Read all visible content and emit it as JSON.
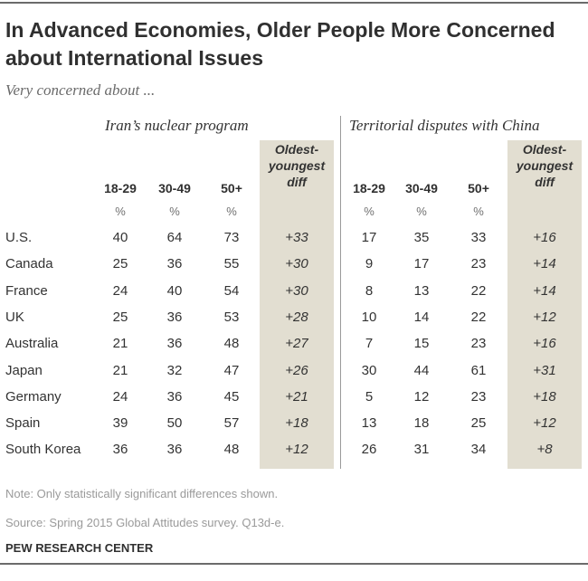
{
  "title": "In Advanced Economies, Older People More Concerned about International Issues",
  "subtitle": "Very concerned about ...",
  "groups": [
    {
      "label": "Iran’s nuclear program",
      "columns": [
        "18-29",
        "30-49",
        "50+"
      ],
      "percent_sign": "%",
      "diff_label": "Oldest-youngest diff"
    },
    {
      "label": "Territorial disputes with China",
      "columns": [
        "18-29",
        "30-49",
        "50+"
      ],
      "percent_sign": "%",
      "diff_label": "Oldest-youngest diff"
    }
  ],
  "rows": [
    {
      "country": "U.S.",
      "iran": [
        "40",
        "64",
        "73",
        "+33"
      ],
      "china": [
        "17",
        "35",
        "33",
        "+16"
      ]
    },
    {
      "country": "Canada",
      "iran": [
        "25",
        "36",
        "55",
        "+30"
      ],
      "china": [
        "9",
        "17",
        "23",
        "+14"
      ]
    },
    {
      "country": "France",
      "iran": [
        "24",
        "40",
        "54",
        "+30"
      ],
      "china": [
        "8",
        "13",
        "22",
        "+14"
      ]
    },
    {
      "country": "UK",
      "iran": [
        "25",
        "36",
        "53",
        "+28"
      ],
      "china": [
        "10",
        "14",
        "22",
        "+12"
      ]
    },
    {
      "country": "Australia",
      "iran": [
        "21",
        "36",
        "48",
        "+27"
      ],
      "china": [
        "7",
        "15",
        "23",
        "+16"
      ]
    },
    {
      "country": "Japan",
      "iran": [
        "21",
        "32",
        "47",
        "+26"
      ],
      "china": [
        "30",
        "44",
        "61",
        "+31"
      ]
    },
    {
      "country": "Germany",
      "iran": [
        "24",
        "36",
        "45",
        "+21"
      ],
      "china": [
        "5",
        "12",
        "23",
        "+18"
      ]
    },
    {
      "country": "Spain",
      "iran": [
        "39",
        "50",
        "57",
        "+18"
      ],
      "china": [
        "13",
        "18",
        "25",
        "+12"
      ]
    },
    {
      "country": "South Korea",
      "iran": [
        "36",
        "36",
        "48",
        "+12"
      ],
      "china": [
        "26",
        "31",
        "34",
        "+8"
      ]
    }
  ],
  "note": "Note: Only statistically significant differences shown.",
  "source": "Source: Spring 2015 Global Attitudes survey. Q13d-e.",
  "credit": "PEW RESEARCH CENTER",
  "colors": {
    "diff_column_bg": "#e2ded1",
    "rule": "#6b6b6b",
    "note_text": "#9a9a9a"
  },
  "chart_data": {
    "type": "table",
    "title": "In Advanced Economies, Older People More Concerned about International Issues",
    "subtitle": "Very concerned about ...",
    "column_groups": [
      "Iran’s nuclear program",
      "Territorial disputes with China"
    ],
    "columns": [
      "18-29",
      "30-49",
      "50+",
      "Oldest-youngest diff"
    ],
    "unit": "%",
    "categories": [
      "U.S.",
      "Canada",
      "France",
      "UK",
      "Australia",
      "Japan",
      "Germany",
      "Spain",
      "South Korea"
    ],
    "series": [
      {
        "name": "Iran’s nuclear program",
        "age_18_29": [
          40,
          25,
          24,
          25,
          21,
          21,
          24,
          39,
          36
        ],
        "age_30_49": [
          64,
          36,
          40,
          36,
          36,
          32,
          36,
          50,
          36
        ],
        "age_50_plus": [
          73,
          55,
          54,
          53,
          48,
          47,
          45,
          57,
          48
        ],
        "diff": [
          33,
          30,
          30,
          28,
          27,
          26,
          21,
          18,
          12
        ]
      },
      {
        "name": "Territorial disputes with China",
        "age_18_29": [
          17,
          9,
          8,
          10,
          7,
          30,
          5,
          13,
          26
        ],
        "age_30_49": [
          35,
          17,
          13,
          14,
          15,
          44,
          12,
          18,
          31
        ],
        "age_50_plus": [
          33,
          23,
          22,
          22,
          23,
          61,
          23,
          25,
          34
        ],
        "diff": [
          16,
          14,
          14,
          12,
          16,
          31,
          18,
          12,
          8
        ]
      }
    ]
  }
}
